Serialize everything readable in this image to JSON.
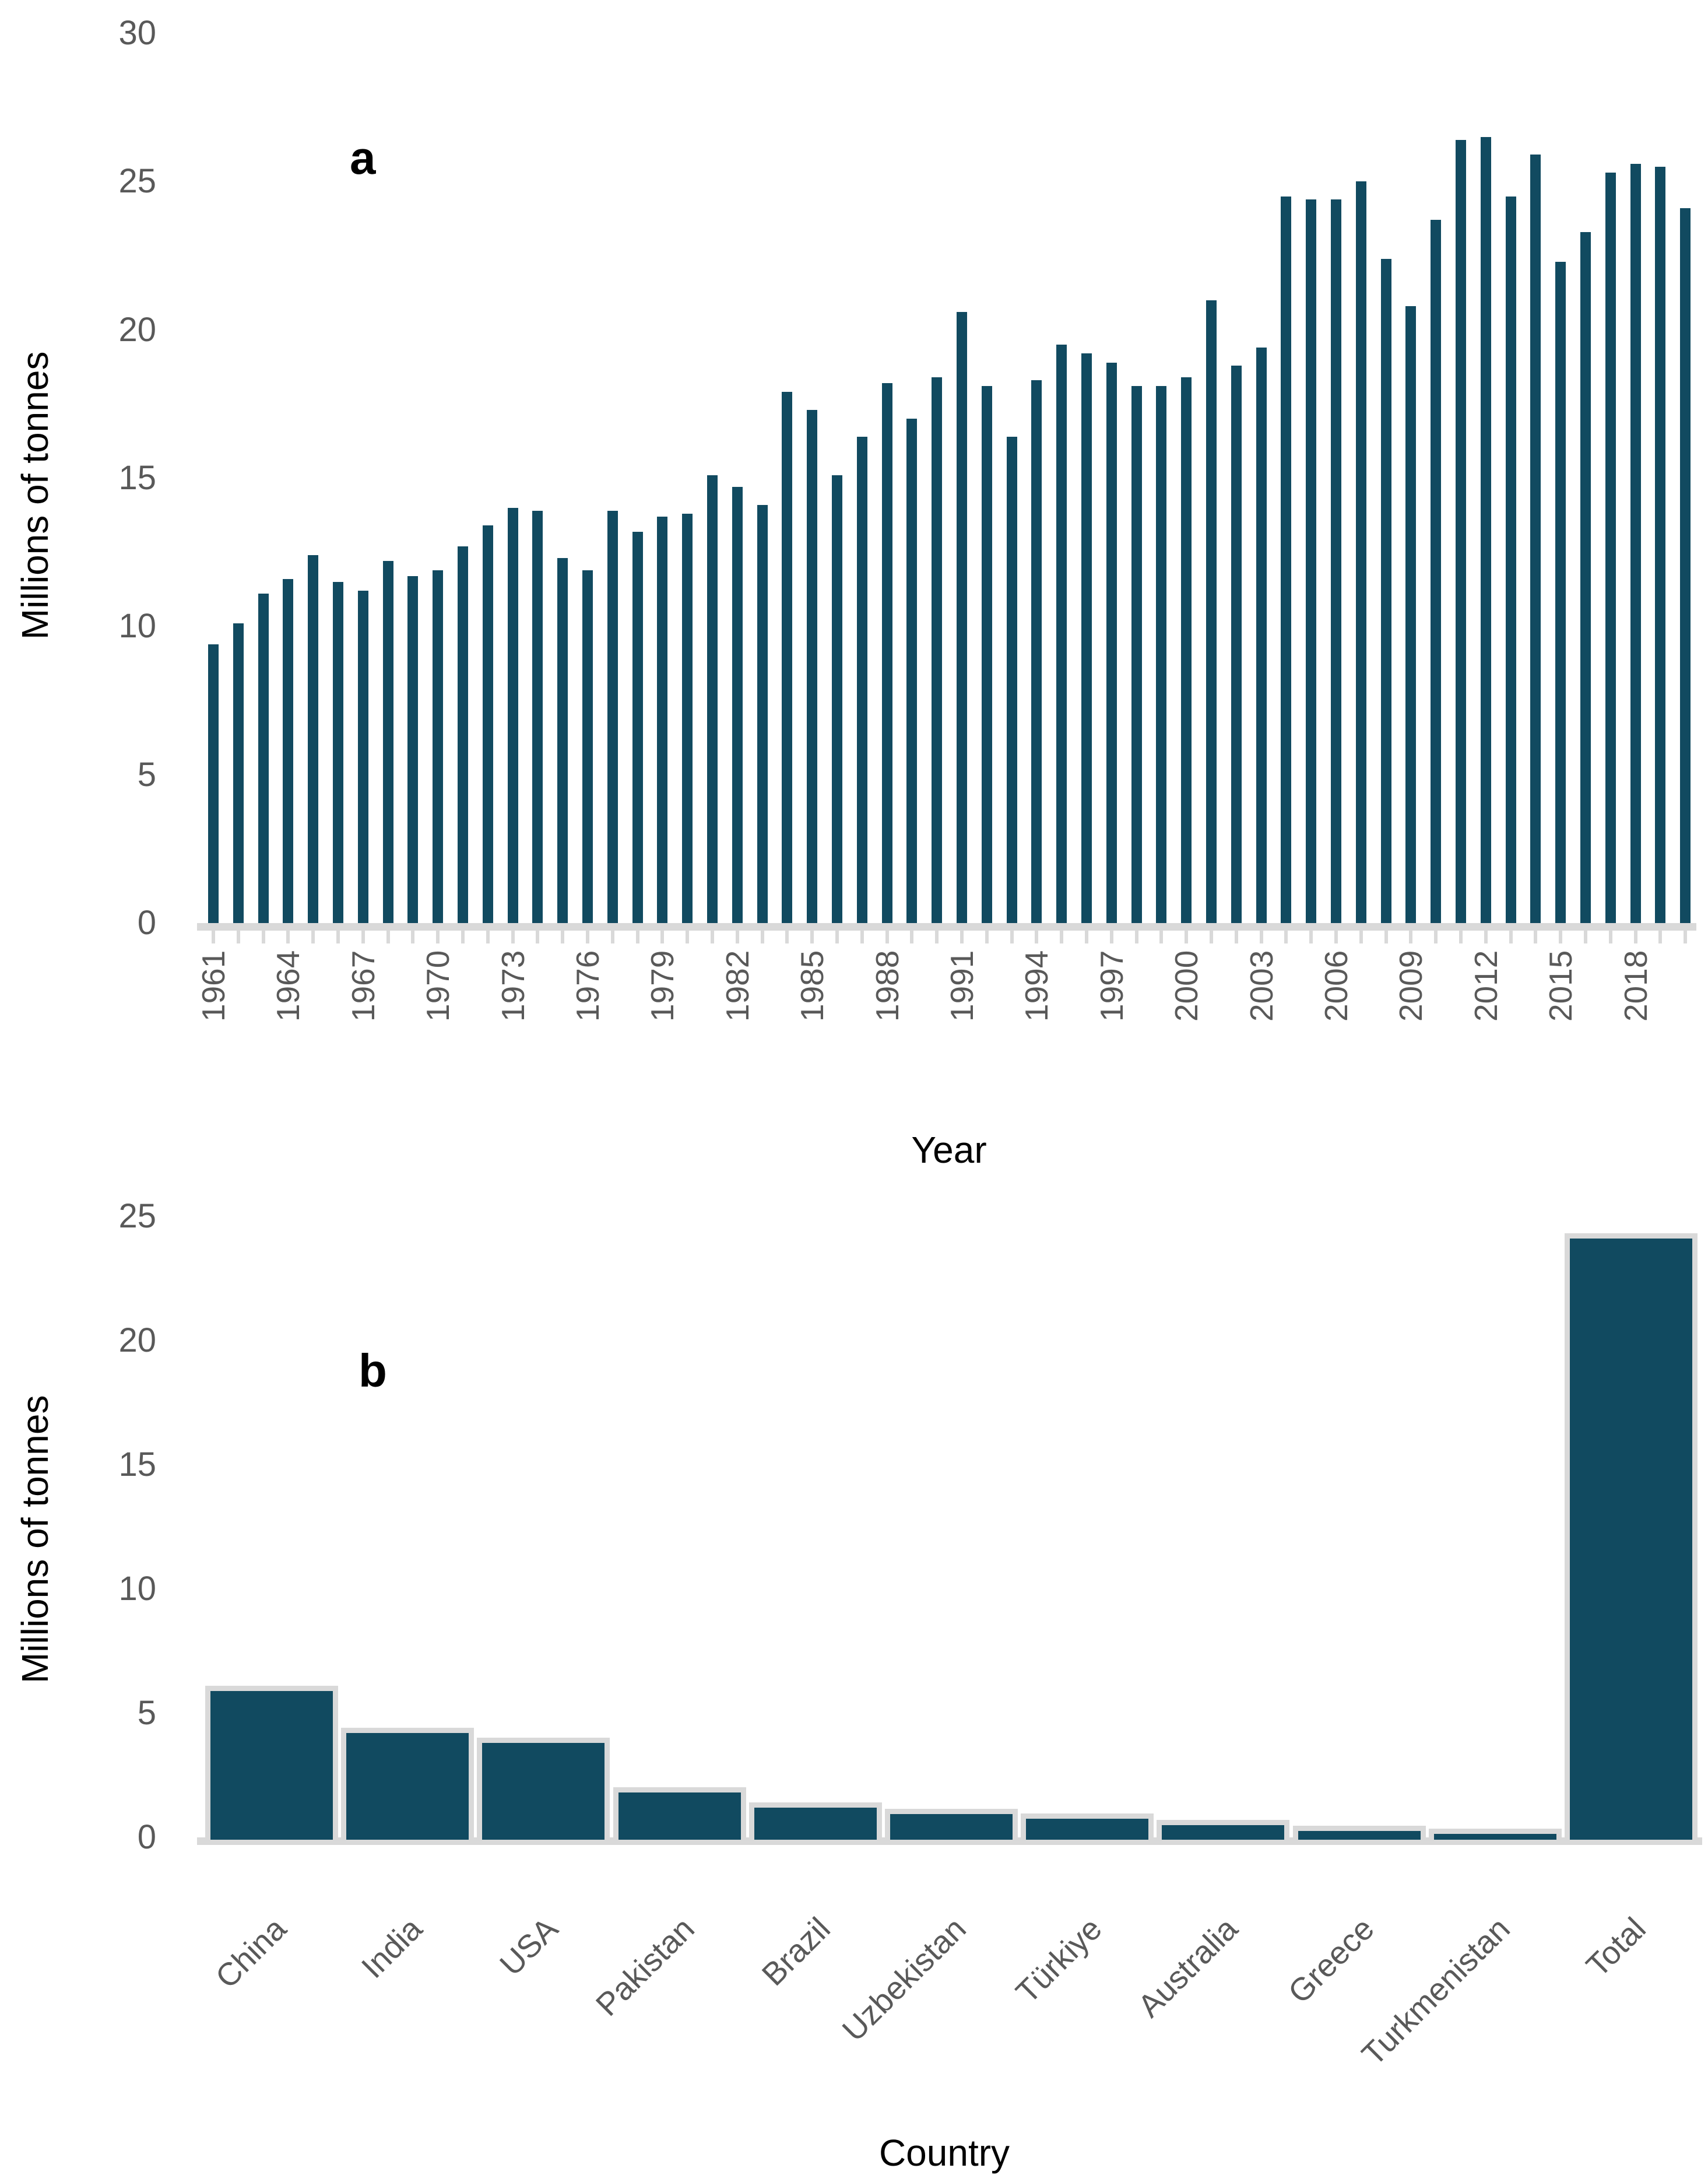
{
  "figure": {
    "background": "#ffffff",
    "bar_color": "#114A60",
    "bar_border_color": "#D9D9D9",
    "axis_color": "#D9D9D9",
    "tick_label_color": "#595959",
    "text_color": "#000000"
  },
  "chart_data": [
    {
      "type": "bar",
      "panel_label": "a",
      "xlabel": "Year",
      "ylabel": "Millions of tonnes",
      "ylim": [
        0,
        30
      ],
      "yticks": [
        0,
        5,
        10,
        15,
        20,
        25,
        30
      ],
      "grid": false,
      "legend": "none",
      "x": [
        1961,
        1962,
        1963,
        1964,
        1965,
        1966,
        1967,
        1968,
        1969,
        1970,
        1971,
        1972,
        1973,
        1974,
        1975,
        1976,
        1977,
        1978,
        1979,
        1980,
        1981,
        1982,
        1983,
        1984,
        1985,
        1986,
        1987,
        1988,
        1989,
        1990,
        1991,
        1992,
        1993,
        1994,
        1995,
        1996,
        1997,
        1998,
        1999,
        2000,
        2001,
        2002,
        2003,
        2004,
        2005,
        2006,
        2007,
        2008,
        2009,
        2010,
        2011,
        2012,
        2013,
        2014,
        2015,
        2016,
        2017,
        2018,
        2019,
        2020
      ],
      "values": [
        9.4,
        10.1,
        11.1,
        11.6,
        12.4,
        11.5,
        11.2,
        12.2,
        11.7,
        11.9,
        12.7,
        13.4,
        14.0,
        13.9,
        12.3,
        11.9,
        13.9,
        13.2,
        13.7,
        13.8,
        15.1,
        14.7,
        14.1,
        17.9,
        17.3,
        15.1,
        16.4,
        18.2,
        17.0,
        18.4,
        20.6,
        18.1,
        16.4,
        18.3,
        19.5,
        19.2,
        18.9,
        18.1,
        18.1,
        18.4,
        21.0,
        18.8,
        19.4,
        24.5,
        24.4,
        24.4,
        25.0,
        22.4,
        20.8,
        23.7,
        26.4,
        26.5,
        24.5,
        25.9,
        22.3,
        23.3,
        25.3,
        25.6,
        25.5,
        24.1
      ],
      "xtick_labels": [
        1961,
        1964,
        1967,
        1970,
        1973,
        1976,
        1979,
        1982,
        1985,
        1988,
        1991,
        1994,
        1997,
        2000,
        2003,
        2006,
        2009,
        2012,
        2015,
        2018
      ]
    },
    {
      "type": "bar",
      "panel_label": "b",
      "xlabel": "Country",
      "ylabel": "Millions of tonnes",
      "ylim": [
        0,
        25
      ],
      "yticks": [
        0,
        5,
        10,
        15,
        20,
        25
      ],
      "grid": false,
      "legend": "none",
      "categories": [
        "China",
        "India",
        "USA",
        "Pakistan",
        "Brazil",
        "Uzbekistan",
        "Türkiye",
        "Australia",
        "Greece",
        "Turkmenistan",
        "Total"
      ],
      "values": [
        5.9,
        4.2,
        3.8,
        1.8,
        1.2,
        0.95,
        0.75,
        0.5,
        0.25,
        0.15,
        24.1
      ]
    }
  ]
}
